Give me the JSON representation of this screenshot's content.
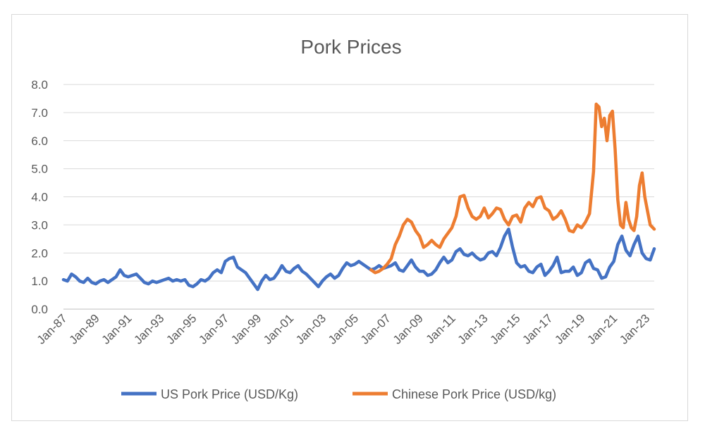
{
  "chart_data": {
    "type": "line",
    "title": "Pork Prices",
    "xlabel": "",
    "ylabel": "",
    "ylim": [
      0,
      8
    ],
    "yticks": [
      "0.0",
      "1.0",
      "2.0",
      "3.0",
      "4.0",
      "5.0",
      "6.0",
      "7.0",
      "8.0"
    ],
    "xlim": [
      "1987-01",
      "2023-07"
    ],
    "xticks": [
      "Jan-87",
      "Jan-89",
      "Jan-91",
      "Jan-93",
      "Jan-95",
      "Jan-97",
      "Jan-99",
      "Jan-01",
      "Jan-03",
      "Jan-05",
      "Jan-07",
      "Jan-09",
      "Jan-11",
      "Jan-13",
      "Jan-15",
      "Jan-17",
      "Jan-19",
      "Jan-21",
      "Jan-23"
    ],
    "grid": true,
    "legend_position": "bottom",
    "series": [
      {
        "name": "US Pork Price (USD/Kg)",
        "color": "#4472c4",
        "points": [
          [
            "1987-01",
            1.05
          ],
          [
            "1987-04",
            1.0
          ],
          [
            "1987-07",
            1.25
          ],
          [
            "1987-10",
            1.15
          ],
          [
            "1988-01",
            1.0
          ],
          [
            "1988-04",
            0.95
          ],
          [
            "1988-07",
            1.1
          ],
          [
            "1988-10",
            0.95
          ],
          [
            "1989-01",
            0.9
          ],
          [
            "1989-04",
            1.0
          ],
          [
            "1989-07",
            1.05
          ],
          [
            "1989-10",
            0.95
          ],
          [
            "1990-01",
            1.05
          ],
          [
            "1990-04",
            1.15
          ],
          [
            "1990-07",
            1.4
          ],
          [
            "1990-10",
            1.2
          ],
          [
            "1991-01",
            1.15
          ],
          [
            "1991-04",
            1.2
          ],
          [
            "1991-07",
            1.25
          ],
          [
            "1991-10",
            1.1
          ],
          [
            "1992-01",
            0.95
          ],
          [
            "1992-04",
            0.9
          ],
          [
            "1992-07",
            1.0
          ],
          [
            "1992-10",
            0.95
          ],
          [
            "1993-01",
            1.0
          ],
          [
            "1993-04",
            1.05
          ],
          [
            "1993-07",
            1.1
          ],
          [
            "1993-10",
            1.0
          ],
          [
            "1994-01",
            1.05
          ],
          [
            "1994-04",
            1.0
          ],
          [
            "1994-07",
            1.05
          ],
          [
            "1994-10",
            0.85
          ],
          [
            "1995-01",
            0.8
          ],
          [
            "1995-04",
            0.9
          ],
          [
            "1995-07",
            1.05
          ],
          [
            "1995-10",
            1.0
          ],
          [
            "1996-01",
            1.1
          ],
          [
            "1996-04",
            1.3
          ],
          [
            "1996-07",
            1.4
          ],
          [
            "1996-10",
            1.3
          ],
          [
            "1997-01",
            1.7
          ],
          [
            "1997-04",
            1.8
          ],
          [
            "1997-07",
            1.85
          ],
          [
            "1997-10",
            1.5
          ],
          [
            "1998-01",
            1.4
          ],
          [
            "1998-04",
            1.3
          ],
          [
            "1998-07",
            1.1
          ],
          [
            "1998-10",
            0.9
          ],
          [
            "1999-01",
            0.7
          ],
          [
            "1999-04",
            1.0
          ],
          [
            "1999-07",
            1.2
          ],
          [
            "1999-10",
            1.05
          ],
          [
            "2000-01",
            1.1
          ],
          [
            "2000-04",
            1.3
          ],
          [
            "2000-07",
            1.55
          ],
          [
            "2000-10",
            1.35
          ],
          [
            "2001-01",
            1.3
          ],
          [
            "2001-04",
            1.45
          ],
          [
            "2001-07",
            1.55
          ],
          [
            "2001-10",
            1.35
          ],
          [
            "2002-01",
            1.25
          ],
          [
            "2002-04",
            1.1
          ],
          [
            "2002-07",
            0.95
          ],
          [
            "2002-10",
            0.8
          ],
          [
            "2003-01",
            1.0
          ],
          [
            "2003-04",
            1.15
          ],
          [
            "2003-07",
            1.25
          ],
          [
            "2003-10",
            1.1
          ],
          [
            "2004-01",
            1.2
          ],
          [
            "2004-04",
            1.45
          ],
          [
            "2004-07",
            1.65
          ],
          [
            "2004-10",
            1.55
          ],
          [
            "2005-01",
            1.6
          ],
          [
            "2005-04",
            1.7
          ],
          [
            "2005-07",
            1.6
          ],
          [
            "2005-10",
            1.5
          ],
          [
            "2006-01",
            1.4
          ],
          [
            "2006-04",
            1.45
          ],
          [
            "2006-07",
            1.55
          ],
          [
            "2006-10",
            1.45
          ],
          [
            "2007-01",
            1.5
          ],
          [
            "2007-04",
            1.55
          ],
          [
            "2007-07",
            1.65
          ],
          [
            "2007-10",
            1.4
          ],
          [
            "2008-01",
            1.35
          ],
          [
            "2008-04",
            1.55
          ],
          [
            "2008-07",
            1.75
          ],
          [
            "2008-10",
            1.5
          ],
          [
            "2009-01",
            1.35
          ],
          [
            "2009-04",
            1.35
          ],
          [
            "2009-07",
            1.2
          ],
          [
            "2009-10",
            1.25
          ],
          [
            "2010-01",
            1.4
          ],
          [
            "2010-04",
            1.65
          ],
          [
            "2010-07",
            1.85
          ],
          [
            "2010-10",
            1.65
          ],
          [
            "2011-01",
            1.75
          ],
          [
            "2011-04",
            2.05
          ],
          [
            "2011-07",
            2.15
          ],
          [
            "2011-10",
            1.95
          ],
          [
            "2012-01",
            1.9
          ],
          [
            "2012-04",
            2.0
          ],
          [
            "2012-07",
            1.85
          ],
          [
            "2012-10",
            1.75
          ],
          [
            "2013-01",
            1.8
          ],
          [
            "2013-04",
            2.0
          ],
          [
            "2013-07",
            2.05
          ],
          [
            "2013-10",
            1.9
          ],
          [
            "2014-01",
            2.2
          ],
          [
            "2014-04",
            2.6
          ],
          [
            "2014-07",
            2.85
          ],
          [
            "2014-10",
            2.2
          ],
          [
            "2015-01",
            1.65
          ],
          [
            "2015-04",
            1.5
          ],
          [
            "2015-07",
            1.55
          ],
          [
            "2015-10",
            1.35
          ],
          [
            "2016-01",
            1.3
          ],
          [
            "2016-04",
            1.5
          ],
          [
            "2016-07",
            1.6
          ],
          [
            "2016-10",
            1.2
          ],
          [
            "2017-01",
            1.35
          ],
          [
            "2017-04",
            1.55
          ],
          [
            "2017-07",
            1.85
          ],
          [
            "2017-10",
            1.3
          ],
          [
            "2018-01",
            1.35
          ],
          [
            "2018-04",
            1.35
          ],
          [
            "2018-07",
            1.5
          ],
          [
            "2018-10",
            1.2
          ],
          [
            "2019-01",
            1.3
          ],
          [
            "2019-04",
            1.65
          ],
          [
            "2019-07",
            1.75
          ],
          [
            "2019-10",
            1.45
          ],
          [
            "2020-01",
            1.4
          ],
          [
            "2020-04",
            1.1
          ],
          [
            "2020-07",
            1.15
          ],
          [
            "2020-10",
            1.5
          ],
          [
            "2021-01",
            1.7
          ],
          [
            "2021-04",
            2.3
          ],
          [
            "2021-07",
            2.6
          ],
          [
            "2021-10",
            2.1
          ],
          [
            "2022-01",
            1.9
          ],
          [
            "2022-04",
            2.3
          ],
          [
            "2022-07",
            2.6
          ],
          [
            "2022-10",
            2.0
          ],
          [
            "2023-01",
            1.8
          ],
          [
            "2023-04",
            1.75
          ],
          [
            "2023-07",
            2.15
          ]
        ]
      },
      {
        "name": "Chinese Pork Price (USD/kg)",
        "color": "#ed7d31",
        "points": [
          [
            "2006-01",
            1.4
          ],
          [
            "2006-04",
            1.3
          ],
          [
            "2006-07",
            1.35
          ],
          [
            "2006-10",
            1.45
          ],
          [
            "2007-01",
            1.6
          ],
          [
            "2007-04",
            1.8
          ],
          [
            "2007-07",
            2.3
          ],
          [
            "2007-10",
            2.6
          ],
          [
            "2008-01",
            3.0
          ],
          [
            "2008-04",
            3.2
          ],
          [
            "2008-07",
            3.1
          ],
          [
            "2008-10",
            2.8
          ],
          [
            "2009-01",
            2.6
          ],
          [
            "2009-04",
            2.2
          ],
          [
            "2009-07",
            2.3
          ],
          [
            "2009-10",
            2.45
          ],
          [
            "2010-01",
            2.3
          ],
          [
            "2010-04",
            2.2
          ],
          [
            "2010-07",
            2.5
          ],
          [
            "2010-10",
            2.7
          ],
          [
            "2011-01",
            2.9
          ],
          [
            "2011-04",
            3.3
          ],
          [
            "2011-07",
            4.0
          ],
          [
            "2011-10",
            4.05
          ],
          [
            "2012-01",
            3.6
          ],
          [
            "2012-04",
            3.3
          ],
          [
            "2012-07",
            3.2
          ],
          [
            "2012-10",
            3.3
          ],
          [
            "2013-01",
            3.6
          ],
          [
            "2013-04",
            3.25
          ],
          [
            "2013-07",
            3.4
          ],
          [
            "2013-10",
            3.6
          ],
          [
            "2014-01",
            3.55
          ],
          [
            "2014-04",
            3.2
          ],
          [
            "2014-07",
            3.0
          ],
          [
            "2014-10",
            3.3
          ],
          [
            "2015-01",
            3.35
          ],
          [
            "2015-04",
            3.1
          ],
          [
            "2015-07",
            3.6
          ],
          [
            "2015-10",
            3.8
          ],
          [
            "2016-01",
            3.65
          ],
          [
            "2016-04",
            3.95
          ],
          [
            "2016-07",
            4.0
          ],
          [
            "2016-10",
            3.6
          ],
          [
            "2017-01",
            3.5
          ],
          [
            "2017-04",
            3.2
          ],
          [
            "2017-07",
            3.3
          ],
          [
            "2017-10",
            3.5
          ],
          [
            "2018-01",
            3.2
          ],
          [
            "2018-04",
            2.8
          ],
          [
            "2018-07",
            2.75
          ],
          [
            "2018-10",
            3.0
          ],
          [
            "2019-01",
            2.9
          ],
          [
            "2019-04",
            3.1
          ],
          [
            "2019-07",
            3.4
          ],
          [
            "2019-10",
            4.9
          ],
          [
            "2019-12",
            7.3
          ],
          [
            "2020-02",
            7.2
          ],
          [
            "2020-04",
            6.5
          ],
          [
            "2020-06",
            6.8
          ],
          [
            "2020-08",
            6.0
          ],
          [
            "2020-10",
            6.9
          ],
          [
            "2020-12",
            7.05
          ],
          [
            "2021-02",
            5.7
          ],
          [
            "2021-04",
            3.9
          ],
          [
            "2021-06",
            3.0
          ],
          [
            "2021-08",
            2.9
          ],
          [
            "2021-10",
            3.8
          ],
          [
            "2021-12",
            3.2
          ],
          [
            "2022-02",
            2.9
          ],
          [
            "2022-04",
            2.8
          ],
          [
            "2022-06",
            3.3
          ],
          [
            "2022-08",
            4.4
          ],
          [
            "2022-10",
            4.85
          ],
          [
            "2022-12",
            4.0
          ],
          [
            "2023-02",
            3.5
          ],
          [
            "2023-04",
            3.0
          ],
          [
            "2023-07",
            2.85
          ]
        ]
      }
    ]
  }
}
